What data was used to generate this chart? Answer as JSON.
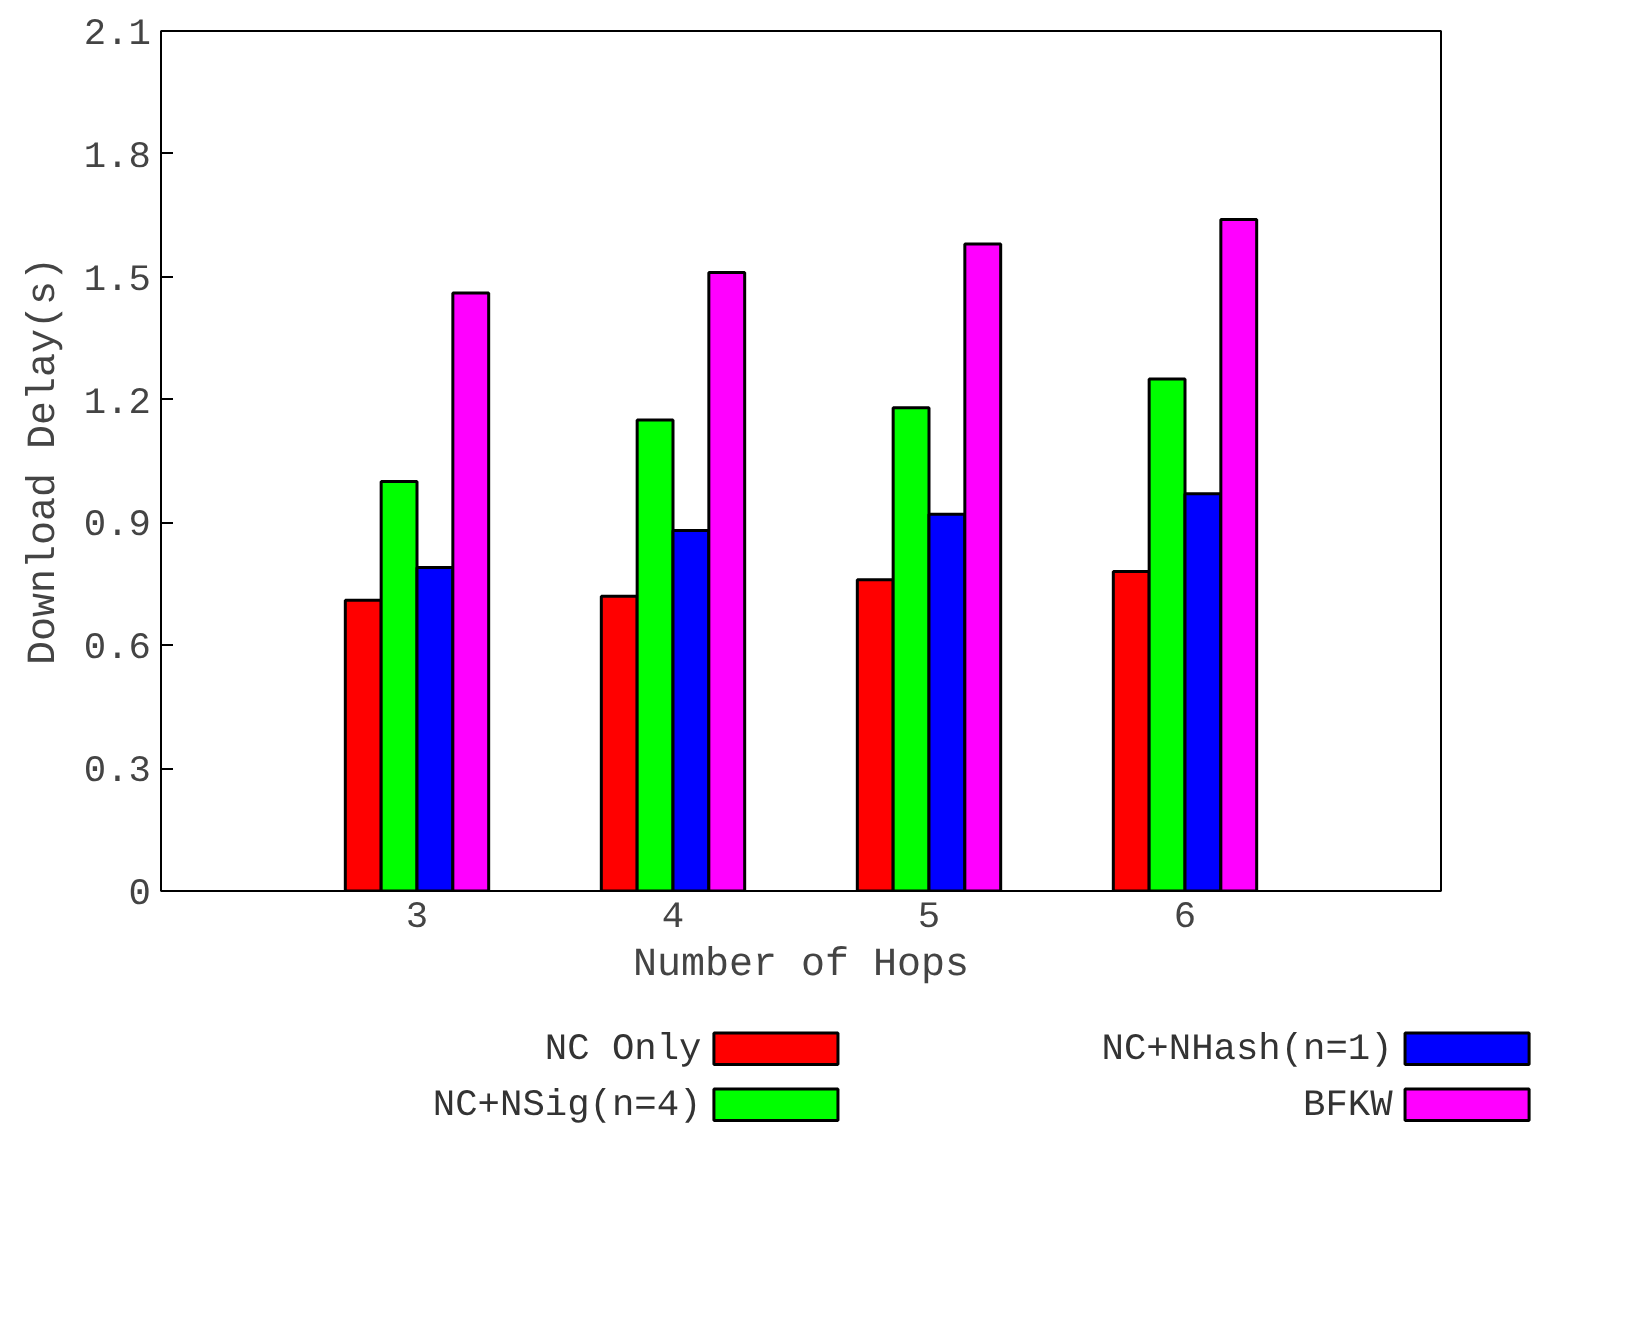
{
  "chart_data": {
    "type": "bar",
    "xlabel": "Number of Hops",
    "ylabel": "Download Delay(s)",
    "x": [
      3,
      4,
      5,
      6
    ],
    "xlim": [
      2,
      7
    ],
    "xticks": [
      3,
      4,
      5,
      6
    ],
    "ylim": [
      0,
      2.1
    ],
    "yticks": [
      0,
      0.3,
      0.6,
      0.9,
      1.2,
      1.5,
      1.8,
      2.1
    ],
    "grid": false,
    "legend": "bottom",
    "series": [
      {
        "name": "NC Only",
        "color": "#ff0000",
        "values": [
          0.71,
          0.72,
          0.76,
          0.78
        ]
      },
      {
        "name": "NC+NSig(n=4)",
        "color": "#00ff00",
        "values": [
          1.0,
          1.15,
          1.18,
          1.25
        ]
      },
      {
        "name": "NC+NHash(n=1)",
        "color": "#0000ff",
        "values": [
          0.79,
          0.88,
          0.92,
          0.97
        ]
      },
      {
        "name": "BFKW",
        "color": "#ff00ff",
        "values": [
          1.46,
          1.51,
          1.58,
          1.64
        ]
      }
    ]
  }
}
